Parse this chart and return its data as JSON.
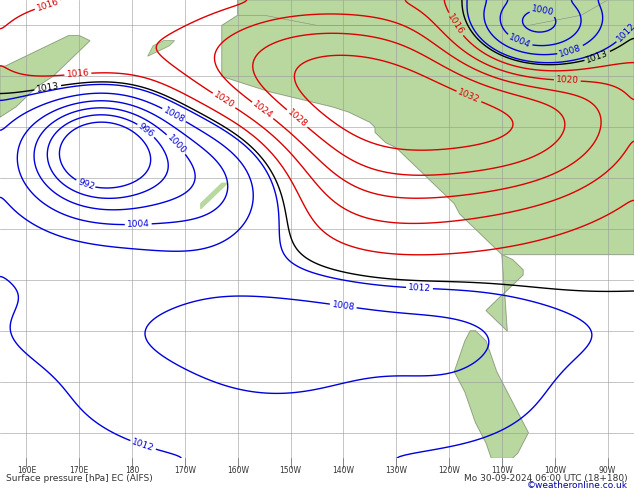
{
  "title_left": "Surface pressure [hPa] EC (AIFS)",
  "title_right": "Mo 30-09-2024 06:00 UTC (18+180)",
  "credit": "©weatheronline.co.uk",
  "bg_ocean": "#c8dce8",
  "bg_land_green": "#b8d8a0",
  "bg_land_gray": "#c8c8c8",
  "contour_color_low": "#0000dd",
  "contour_color_high": "#dd0000",
  "contour_color_1013": "#000000",
  "grid_color": "#999999",
  "figsize": [
    6.34,
    4.9
  ],
  "dpi": 100,
  "lon_min": 155,
  "lon_max": 275,
  "lat_min": -15,
  "lat_max": 75,
  "levels": [
    992,
    996,
    1000,
    1004,
    1008,
    1012,
    1013,
    1016,
    1020,
    1024,
    1028,
    1032
  ],
  "grid_lons": [
    160,
    170,
    180,
    190,
    200,
    210,
    220,
    230,
    240,
    250,
    260,
    270
  ],
  "grid_lats": [
    -10,
    0,
    10,
    20,
    30,
    40,
    50,
    60,
    70
  ],
  "lon_tick_labels": [
    "160E",
    "170E",
    "180",
    "170W",
    "160W",
    "150W",
    "140W",
    "130W",
    "120W",
    "110W",
    "100W",
    "90W"
  ],
  "lon_tick_lons": [
    160,
    170,
    180,
    190,
    200,
    210,
    220,
    230,
    240,
    250,
    260,
    270
  ]
}
